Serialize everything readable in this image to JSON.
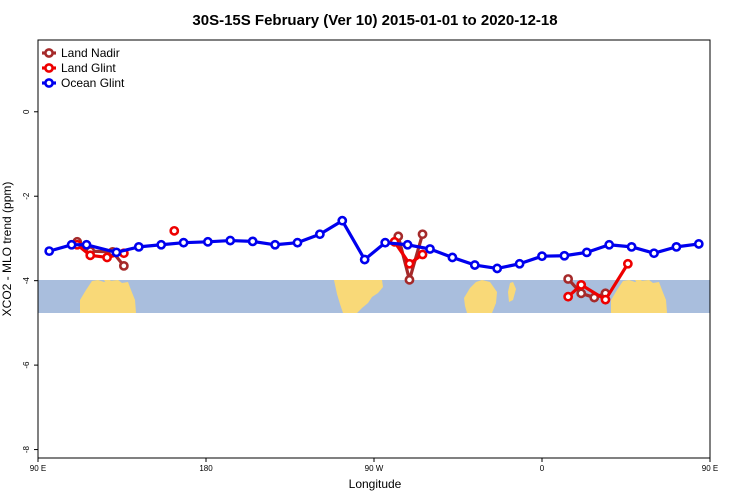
{
  "chart_data": {
    "type": "line",
    "title": "30S-15S February (Ver 10)   2015-01-01 to 2020-12-18",
    "xlabel": "Longitude",
    "ylabel": "XCO2 - MLO trend (ppm)",
    "xlim": [
      90,
      450
    ],
    "ylim": [
      -8.2,
      1.7
    ],
    "xticks": [
      {
        "value": 90,
        "label": "90 E"
      },
      {
        "value": 180,
        "label": "180"
      },
      {
        "value": 270,
        "label": "90 W"
      },
      {
        "value": 360,
        "label": "0"
      },
      {
        "value": 450,
        "label": "90 E"
      },
      {
        "value": 540,
        "label": "180"
      }
    ],
    "yticks": [
      {
        "value": 0,
        "label": "0"
      },
      {
        "value": -2,
        "label": "-2"
      },
      {
        "value": -4,
        "label": "-4"
      },
      {
        "value": -6,
        "label": "-6"
      },
      {
        "value": -8,
        "label": "-8"
      }
    ],
    "map_band": {
      "ymin": -5.0,
      "ymax": -4.2,
      "ocean_color": "#a9bedd",
      "land_color": "#f9d978"
    },
    "legend_position": "top-left",
    "series": [
      {
        "name": "Land Nadir",
        "color": "#a52a2a",
        "segments": [
          [
            [
              111,
              -3.08
            ],
            [
              118,
              -3.3
            ],
            [
              130,
              -3.32
            ],
            [
              136,
              -3.65
            ]
          ],
          [
            [
              283,
              -2.95
            ],
            [
              289,
              -3.98
            ],
            [
              296,
              -2.9
            ]
          ],
          [
            [
              374,
              -3.96
            ],
            [
              381,
              -4.3
            ],
            [
              388,
              -4.4
            ],
            [
              394,
              -4.3
            ]
          ],
          [
            [
              471,
              -3.08
            ],
            [
              478,
              -3.3
            ],
            [
              490,
              -3.32
            ],
            [
              496,
              -3.65
            ]
          ]
        ]
      },
      {
        "name": "Land Glint",
        "color": "#ee0000",
        "segments": [
          [
            [
              111,
              -3.15
            ],
            [
              118,
              -3.4
            ],
            [
              127,
              -3.45
            ],
            [
              136,
              -3.35
            ]
          ],
          [
            [
              163,
              -2.82
            ]
          ],
          [
            [
              281,
              -3.08
            ],
            [
              289,
              -3.6
            ],
            [
              296,
              -3.38
            ]
          ],
          [
            [
              374,
              -4.38
            ],
            [
              381,
              -4.1
            ],
            [
              394,
              -4.45
            ],
            [
              406,
              -3.6
            ]
          ],
          [
            [
              471,
              -3.15
            ],
            [
              478,
              -3.4
            ],
            [
              487,
              -3.45
            ],
            [
              496,
              -3.35
            ]
          ]
        ]
      },
      {
        "name": "Ocean Glint",
        "color": "#0000ee",
        "segments": [
          [
            [
              96,
              -3.3
            ],
            [
              108,
              -3.15
            ],
            [
              116,
              -3.15
            ],
            [
              132,
              -3.33
            ],
            [
              144,
              -3.2
            ],
            [
              156,
              -3.15
            ],
            [
              168,
              -3.1
            ],
            [
              181,
              -3.08
            ],
            [
              193,
              -3.05
            ],
            [
              205,
              -3.07
            ],
            [
              217,
              -3.15
            ],
            [
              229,
              -3.1
            ],
            [
              241,
              -2.9
            ],
            [
              253,
              -2.58
            ],
            [
              265,
              -3.5
            ],
            [
              276,
              -3.1
            ],
            [
              288,
              -3.15
            ],
            [
              300,
              -3.25
            ],
            [
              312,
              -3.45
            ],
            [
              324,
              -3.63
            ],
            [
              336,
              -3.71
            ],
            [
              348,
              -3.6
            ],
            [
              360,
              -3.42
            ],
            [
              372,
              -3.41
            ],
            [
              384,
              -3.33
            ],
            [
              396,
              -3.15
            ],
            [
              408,
              -3.2
            ],
            [
              420,
              -3.35
            ],
            [
              432,
              -3.2
            ],
            [
              444,
              -3.13
            ]
          ]
        ]
      }
    ]
  }
}
